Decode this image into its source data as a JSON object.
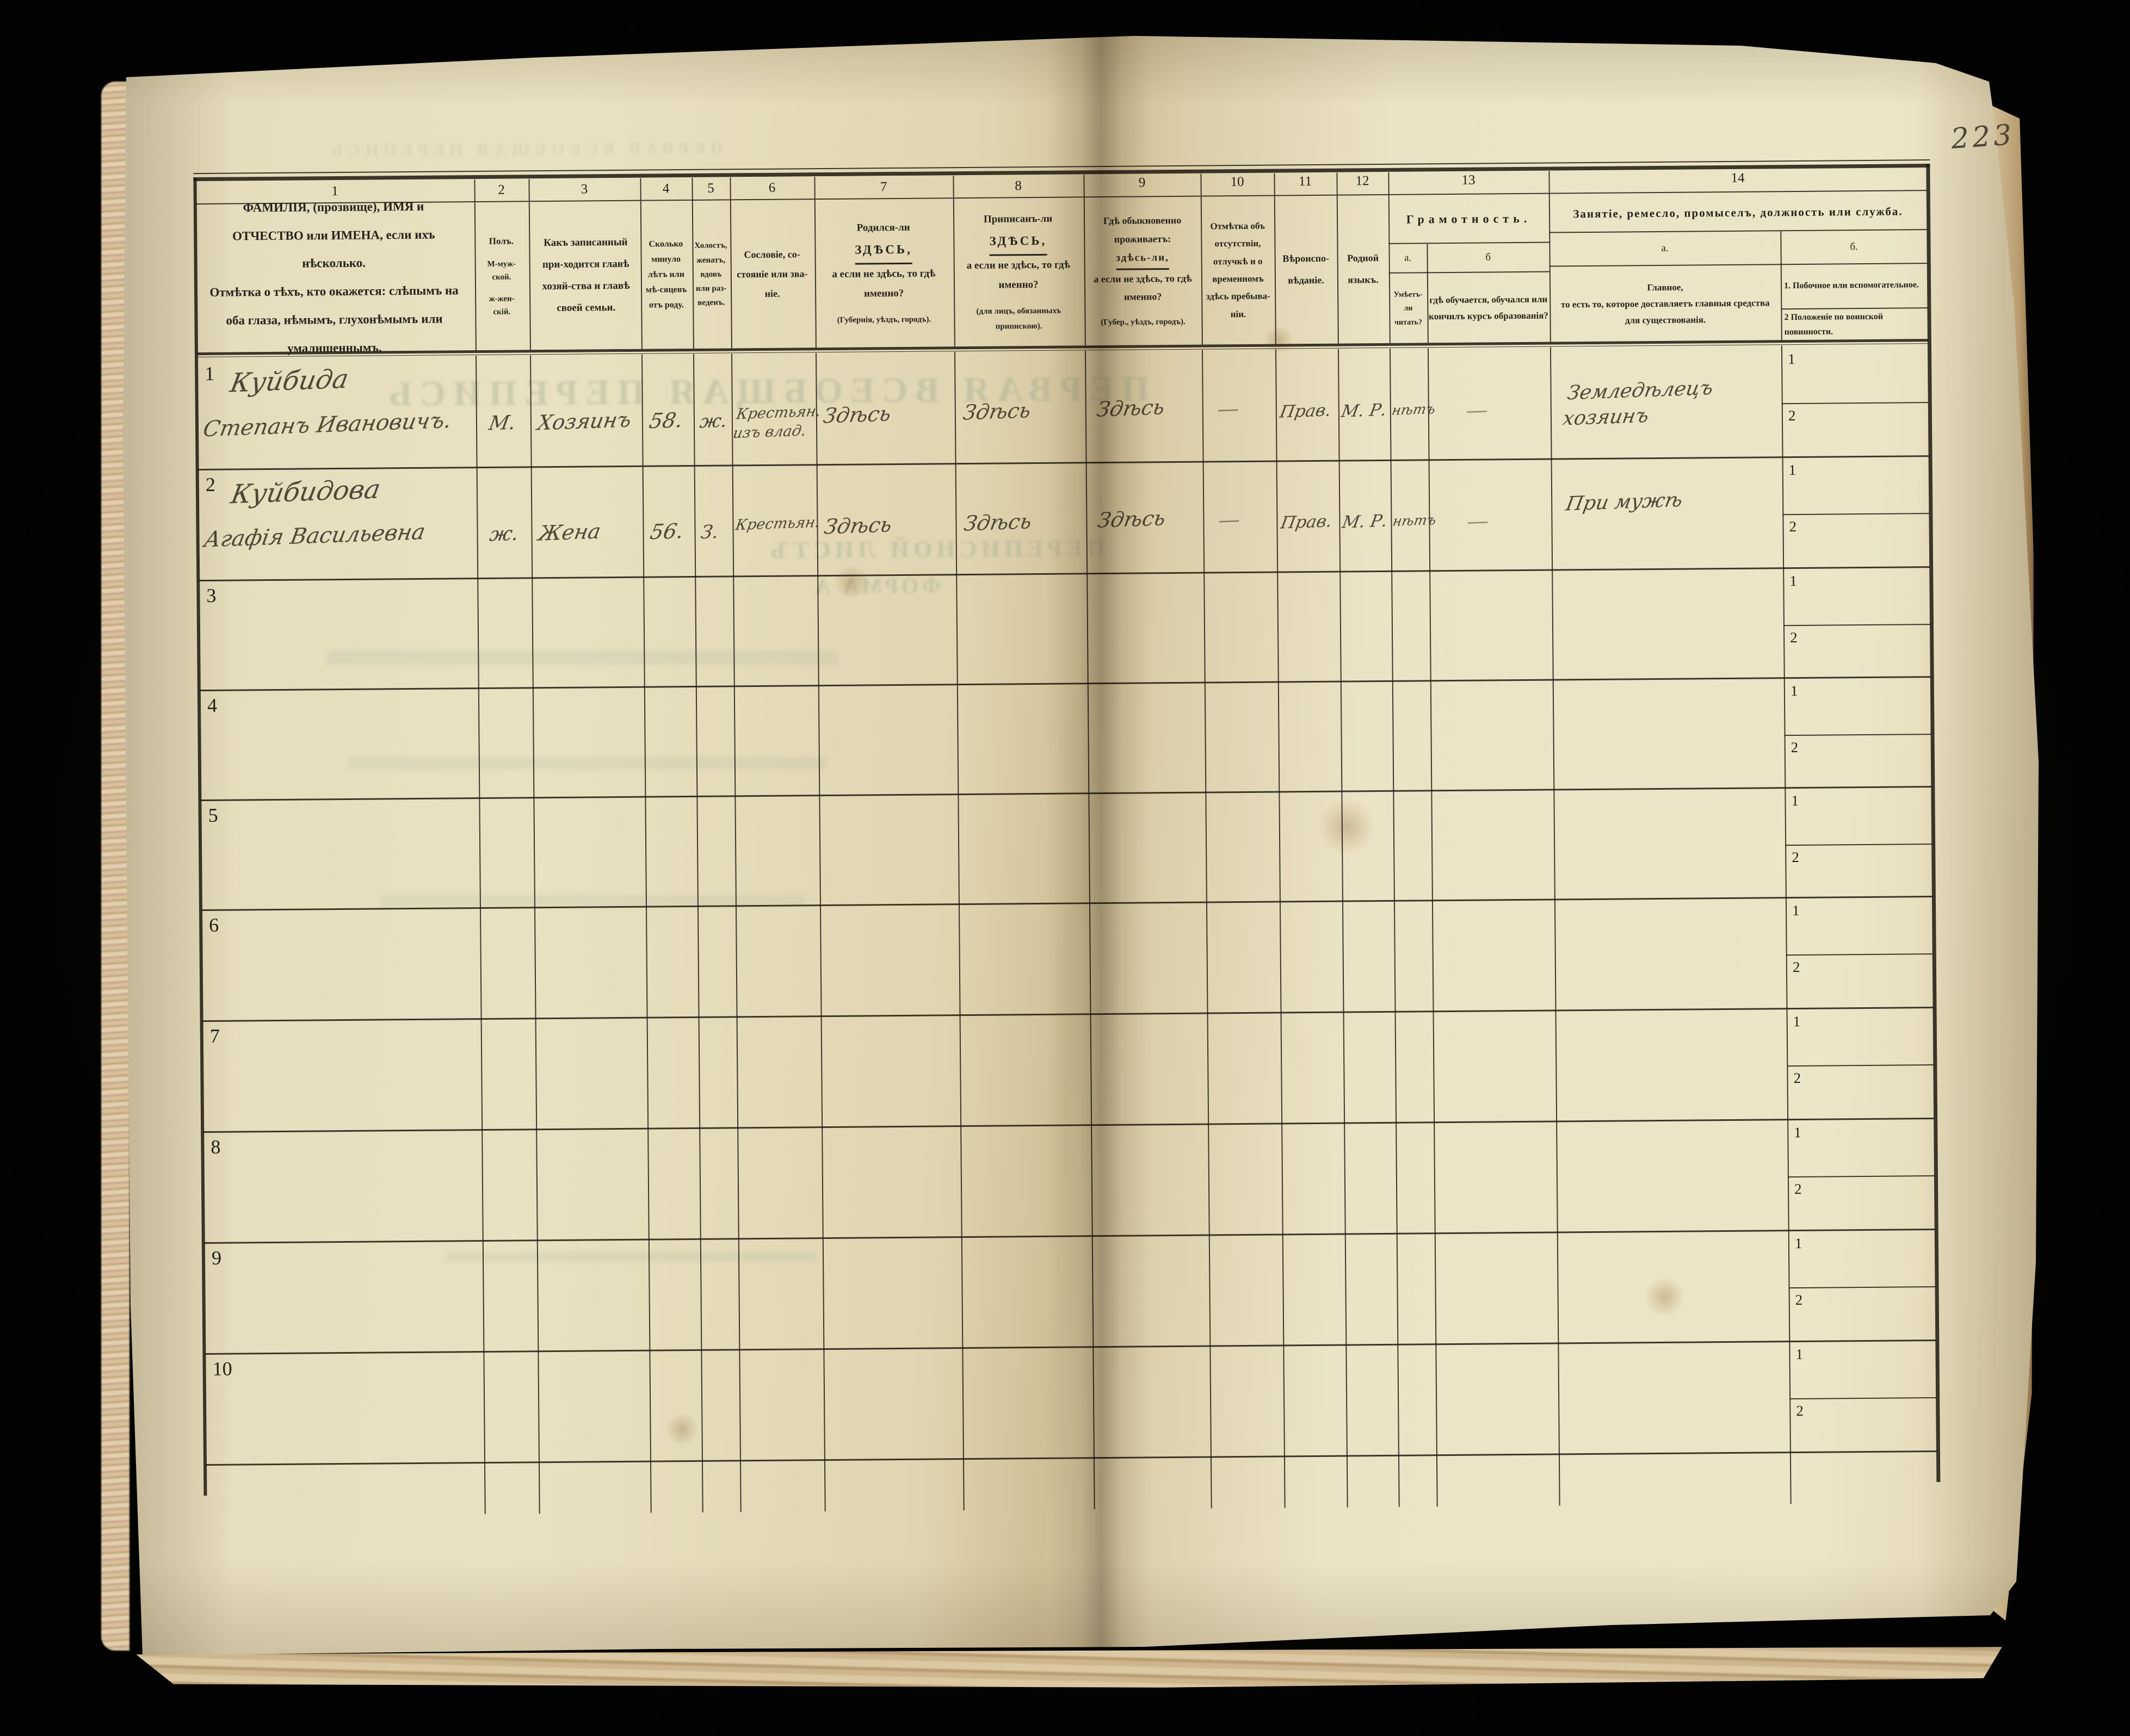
{
  "page": {
    "folio_number": "223"
  },
  "table": {
    "column_numbers": [
      "1",
      "2",
      "3",
      "4",
      "5",
      "6",
      "7",
      "8",
      "9",
      "10",
      "11",
      "12",
      "13",
      "14"
    ],
    "headers": {
      "col1_main": "ФАМИЛІЯ, (прозвище), ИМЯ и ОТЧЕСТВО или ИМЕНА, если ихъ нѣсколько.",
      "col1_note": "Отмѣтка о тѣхъ, кто окажется: слѣпымъ на оба глаза, нѣмымъ, глухонѣмымъ или умалишеннымъ.",
      "col2_title": "Полъ.",
      "col2_m": "М-муж-ской.",
      "col2_f": "ж-жен-скій.",
      "col3": "Какъ записанный при-ходится главѣ хозяй-ства и главѣ своей семьи.",
      "col4": "Сколько минуло лѣтъ или мѣ-сяцевъ отъ роду.",
      "col5": "Холостъ, женатъ, вдовъ или раз-веденъ.",
      "col6": "Сословіе, со-стояніе или зва-ніе.",
      "col7_pre": "Родился-ли",
      "col7_here": "ЗДѢСЬ,",
      "col7_post": "а если не здѣсь, то гдѣ именно?",
      "col7_note": "(Губернія, уѣздъ, городъ).",
      "col8_pre": "Приписанъ-ли",
      "col8_here": "ЗДѢСЬ,",
      "col8_post": "а если не здѣсь, то гдѣ именно?",
      "col8_note": "(для лицъ, обязанныхъ припискою).",
      "col9_pre": "Гдѣ обыкновенно проживаетъ:",
      "col9_here": "здѣсь-ли,",
      "col9_post": "а если не здѣсь, то гдѣ именно?",
      "col9_note": "(Губер., уѣздъ, городъ).",
      "col10": "Отмѣтка объ отсутствіи, отлучкѣ и о временномъ здѣсь пребыва-ніи.",
      "col11": "Вѣроиспо-вѣданіе.",
      "col12": "Родной языкъ.",
      "col13_title": "Грамотность.",
      "col13a_label": "а.",
      "col13b_label": "б",
      "col13a": "Умѣетъ-ли читать?",
      "col13b": "гдѣ обучается, обучался или кончилъ курсъ образованія?",
      "col14_title": "Занятіе, ремесло, промыселъ, должность или служба.",
      "col14a_label": "а.",
      "col14b_label": "б.",
      "col14a_main": "Главное,",
      "col14a_rest": "то есть то, которое доставляетъ главныя средства для существованія.",
      "col14b_item1": "1. Побочное или вспомогательное.",
      "col14b_item2": "2  Положеніе по воинской повинности."
    },
    "sub_row_labels": [
      "1",
      "2"
    ],
    "rows": [
      {
        "num": "1",
        "surname": "Куйбида",
        "given": "Степанъ Ивановичъ.",
        "sex": "М.",
        "relation": "Хозяинъ",
        "age": "58.",
        "marital": "ж.",
        "estate": "Крестьян. изъ влад.",
        "born": "Здѣсь",
        "registered": "Здѣсь",
        "resides": "Здѣсь",
        "absence": "—",
        "religion": "Прав.",
        "language": "М. Р.",
        "reads": "нѣтъ",
        "studied": "—",
        "occupation": "Земледѣлецъ хозяинъ",
        "side_occupation": "",
        "military": ""
      },
      {
        "num": "2",
        "surname": "Куйбидова",
        "given": "Агафія Васильевна",
        "sex": "ж.",
        "relation": "Жена",
        "age": "56.",
        "marital": "З.",
        "estate": "Крестьян.",
        "born": "Здѣсь",
        "registered": "Здѣсь",
        "resides": "Здѣсь",
        "absence": "—",
        "religion": "Прав.",
        "language": "М. Р.",
        "reads": "нѣтъ",
        "studied": "—",
        "occupation": "При мужѣ",
        "side_occupation": "",
        "military": ""
      },
      {
        "num": "3",
        "surname": "",
        "given": "",
        "sex": "",
        "relation": "",
        "age": "",
        "marital": "",
        "estate": "",
        "born": "",
        "registered": "",
        "resides": "",
        "absence": "",
        "religion": "",
        "language": "",
        "reads": "",
        "studied": "",
        "occupation": "",
        "side_occupation": "",
        "military": ""
      },
      {
        "num": "4",
        "surname": "",
        "given": "",
        "sex": "",
        "relation": "",
        "age": "",
        "marital": "",
        "estate": "",
        "born": "",
        "registered": "",
        "resides": "",
        "absence": "",
        "religion": "",
        "language": "",
        "reads": "",
        "studied": "",
        "occupation": "",
        "side_occupation": "",
        "military": ""
      },
      {
        "num": "5",
        "surname": "",
        "given": "",
        "sex": "",
        "relation": "",
        "age": "",
        "marital": "",
        "estate": "",
        "born": "",
        "registered": "",
        "resides": "",
        "absence": "",
        "religion": "",
        "language": "",
        "reads": "",
        "studied": "",
        "occupation": "",
        "side_occupation": "",
        "military": ""
      },
      {
        "num": "6",
        "surname": "",
        "given": "",
        "sex": "",
        "relation": "",
        "age": "",
        "marital": "",
        "estate": "",
        "born": "",
        "registered": "",
        "resides": "",
        "absence": "",
        "religion": "",
        "language": "",
        "reads": "",
        "studied": "",
        "occupation": "",
        "side_occupation": "",
        "military": ""
      },
      {
        "num": "7",
        "surname": "",
        "given": "",
        "sex": "",
        "relation": "",
        "age": "",
        "marital": "",
        "estate": "",
        "born": "",
        "registered": "",
        "resides": "",
        "absence": "",
        "religion": "",
        "language": "",
        "reads": "",
        "studied": "",
        "occupation": "",
        "side_occupation": "",
        "military": ""
      },
      {
        "num": "8",
        "surname": "",
        "given": "",
        "sex": "",
        "relation": "",
        "age": "",
        "marital": "",
        "estate": "",
        "born": "",
        "registered": "",
        "resides": "",
        "absence": "",
        "religion": "",
        "language": "",
        "reads": "",
        "studied": "",
        "occupation": "",
        "side_occupation": "",
        "military": ""
      },
      {
        "num": "9",
        "surname": "",
        "given": "",
        "sex": "",
        "relation": "",
        "age": "",
        "marital": "",
        "estate": "",
        "born": "",
        "registered": "",
        "resides": "",
        "absence": "",
        "religion": "",
        "language": "",
        "reads": "",
        "studied": "",
        "occupation": "",
        "side_occupation": "",
        "military": ""
      },
      {
        "num": "10",
        "surname": "",
        "given": "",
        "sex": "",
        "relation": "",
        "age": "",
        "marital": "",
        "estate": "",
        "born": "",
        "registered": "",
        "resides": "",
        "absence": "",
        "religion": "",
        "language": "",
        "reads": "",
        "studied": "",
        "occupation": "",
        "side_occupation": "",
        "military": ""
      }
    ]
  },
  "bleed_through": {
    "top_strip": "ПЕРВАЯ ВСЕОБЩАЯ ПЕРЕПИСЬ",
    "title_large": "ПЕРВАЯ ВСЕОБЩАЯ ПЕРЕПИСЬ",
    "sheet_title": "ПЕРЕПИСНОЙ ЛИСТЪ",
    "form": "ФОРМА А"
  }
}
